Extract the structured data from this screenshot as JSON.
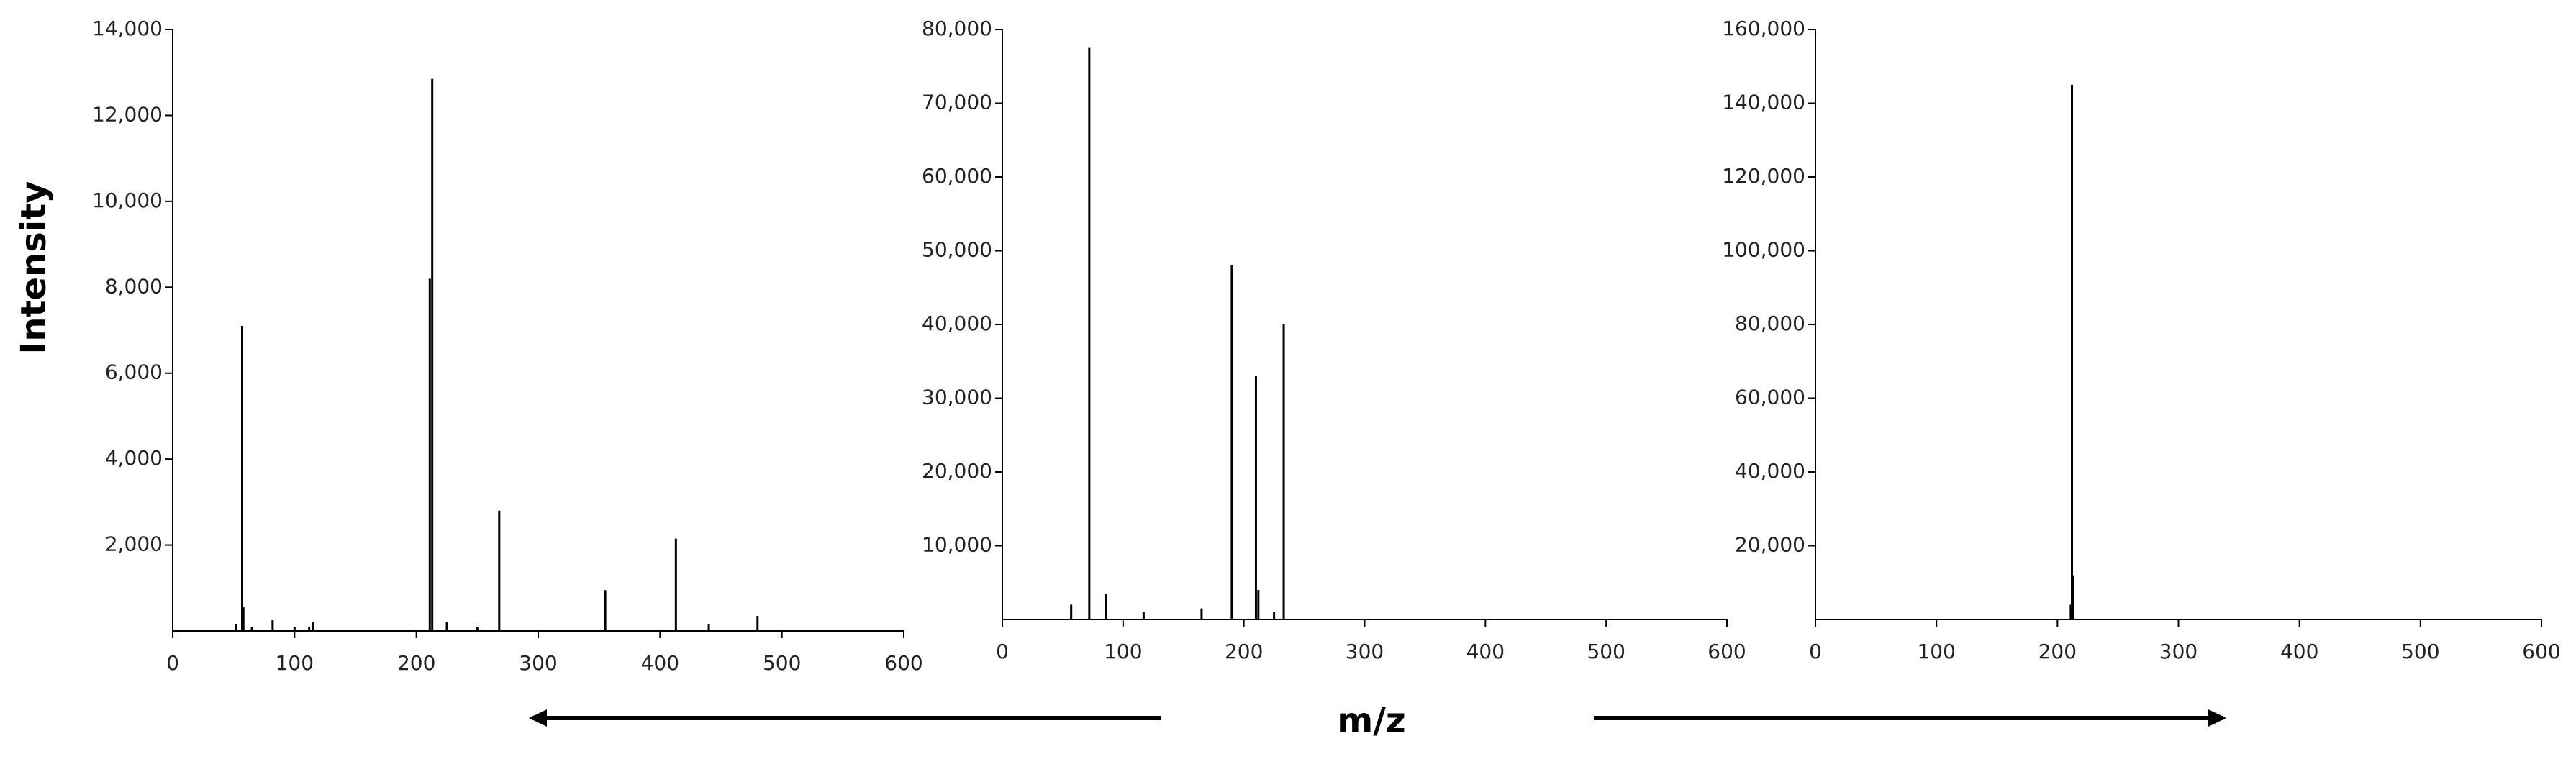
{
  "chart_data": [
    {
      "type": "stem",
      "y_label": "Intensity",
      "x": [
        52,
        57,
        58,
        65,
        82,
        100,
        112,
        115,
        211,
        213,
        225,
        250,
        268,
        355,
        413,
        440,
        480
      ],
      "values": [
        150,
        7100,
        550,
        100,
        250,
        100,
        100,
        200,
        8200,
        12850,
        200,
        100,
        2800,
        950,
        2150,
        150,
        350
      ],
      "color": "#000000",
      "xlim": [
        0,
        600
      ],
      "xticks": [
        0,
        100,
        200,
        300,
        400,
        500,
        600
      ],
      "ylim": [
        0,
        14000
      ],
      "yticks": [
        {
          "value": 2000,
          "label": "2,000"
        },
        {
          "value": 4000,
          "label": "4,000"
        },
        {
          "value": 6000,
          "label": "6,000"
        },
        {
          "value": 8000,
          "label": "8,000"
        },
        {
          "value": 10000,
          "label": "10,000"
        },
        {
          "value": 12000,
          "label": "12,000"
        },
        {
          "value": 14000,
          "label": "14,000"
        }
      ]
    },
    {
      "type": "stem",
      "x_label": "m/z",
      "x": [
        57,
        72,
        86,
        117,
        165,
        190,
        210,
        212,
        225,
        233
      ],
      "values": [
        2000,
        77500,
        3500,
        1000,
        1500,
        48000,
        33000,
        4000,
        1000,
        40000
      ],
      "color": "#000000",
      "xlim": [
        0,
        600
      ],
      "xticks": [
        0,
        100,
        200,
        300,
        400,
        500,
        600
      ],
      "ylim": [
        0,
        80000
      ],
      "yticks": [
        {
          "value": 10000,
          "label": "10,000"
        },
        {
          "value": 20000,
          "label": "20,000"
        },
        {
          "value": 30000,
          "label": "30,000"
        },
        {
          "value": 40000,
          "label": "40,000"
        },
        {
          "value": 50000,
          "label": "50,000"
        },
        {
          "value": 60000,
          "label": "60,000"
        },
        {
          "value": 70000,
          "label": "70,000"
        },
        {
          "value": 80000,
          "label": "80,000"
        }
      ]
    },
    {
      "type": "stem",
      "x": [
        211,
        212,
        213
      ],
      "values": [
        4000,
        145000,
        12000
      ],
      "color": "#000000",
      "xlim": [
        0,
        600
      ],
      "xticks": [
        0,
        100,
        200,
        300,
        400,
        500,
        600
      ],
      "ylim": [
        0,
        160000
      ],
      "yticks": [
        {
          "value": 20000,
          "label": "20,000"
        },
        {
          "value": 40000,
          "label": "40,000"
        },
        {
          "value": 60000,
          "label": "60,000"
        },
        {
          "value": 80000,
          "label": "80,000"
        },
        {
          "value": 100000,
          "label": "100,000"
        },
        {
          "value": 120000,
          "label": "120,000"
        },
        {
          "value": 140000,
          "label": "140,000"
        },
        {
          "value": 160000,
          "label": "160,000"
        }
      ]
    }
  ]
}
